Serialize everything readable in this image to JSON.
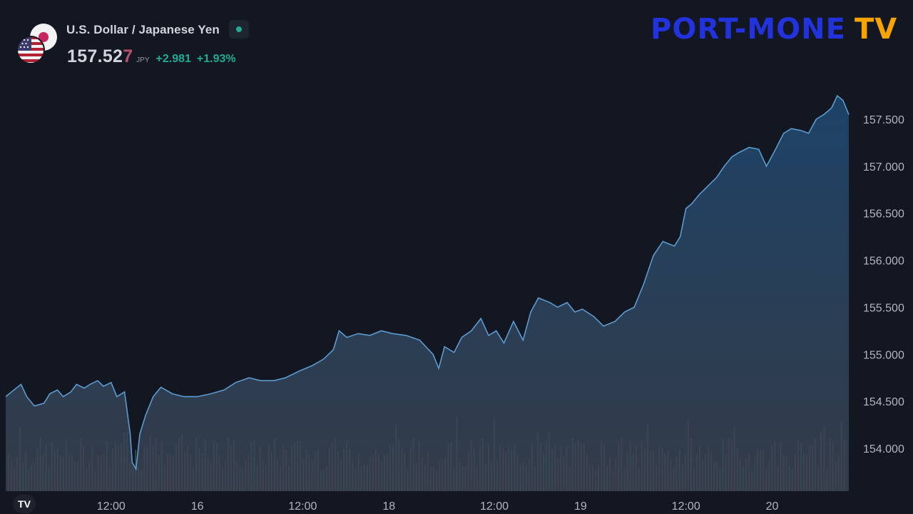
{
  "symbol": {
    "title": "U.S. Dollar / Japanese Yen",
    "price_main": "157.52",
    "price_last_digit": "7",
    "currency": "JPY",
    "change": "+2.981",
    "change_pct": "+1.93%"
  },
  "brand": {
    "part1": "PORT-MONE",
    "part2": "TV"
  },
  "logo_text": "TV",
  "colors": {
    "background": "#131722",
    "line": "#5b9bd1",
    "area_top": "#1f4a73",
    "area_bottom": "#3d4654",
    "volume_up": "#5f7e7a",
    "volume_down": "#8a5a6a",
    "accent_up": "#22ab94",
    "brand_blue": "#2233dd",
    "brand_orange": "#f7a400"
  },
  "chart_data": {
    "type": "area",
    "y_ticks": [
      "157.500",
      "157.000",
      "156.500",
      "156.000",
      "155.500",
      "155.000",
      "154.500",
      "154.000"
    ],
    "y_tick_values": [
      157.5,
      157.0,
      156.5,
      156.0,
      155.5,
      155.0,
      154.5,
      154.0
    ],
    "ylim": [
      153.5,
      157.95
    ],
    "x_ticks": [
      "12:00",
      "16",
      "12:00",
      "18",
      "12:00",
      "19",
      "12:00",
      "20"
    ],
    "x_tick_positions": [
      0.55,
      1.0,
      1.55,
      2.0,
      2.55,
      3.0,
      3.55,
      4.0
    ],
    "xlim": [
      0.0,
      4.4
    ],
    "series": [
      {
        "x": [
          0.0,
          0.03,
          0.08,
          0.11,
          0.15,
          0.2,
          0.23,
          0.27,
          0.3,
          0.34,
          0.37,
          0.41,
          0.44,
          0.48,
          0.51,
          0.55,
          0.58,
          0.62,
          0.65,
          0.66,
          0.68,
          0.7,
          0.73,
          0.77,
          0.81,
          0.87,
          0.93,
          1.0,
          1.07,
          1.14,
          1.2,
          1.27,
          1.33,
          1.4,
          1.46,
          1.53,
          1.6,
          1.66,
          1.71,
          1.74,
          1.78,
          1.84,
          1.9,
          1.96,
          2.02,
          2.09,
          2.16,
          2.23,
          2.26,
          2.29,
          2.34,
          2.38,
          2.43,
          2.48,
          2.52,
          2.56,
          2.6,
          2.65,
          2.7,
          2.74,
          2.78,
          2.84,
          2.88,
          2.93,
          2.97,
          3.01,
          3.07,
          3.12,
          3.18,
          3.23,
          3.28,
          3.33,
          3.38,
          3.43,
          3.49,
          3.52,
          3.55,
          3.58,
          3.62,
          3.67,
          3.71,
          3.75,
          3.79,
          3.83,
          3.88,
          3.93,
          3.97,
          4.01,
          4.06,
          4.1,
          4.15,
          4.19,
          4.23,
          4.27,
          4.31,
          4.34,
          4.37,
          4.4
        ],
        "y": [
          154.55,
          154.6,
          154.68,
          154.55,
          154.45,
          154.48,
          154.58,
          154.62,
          154.55,
          154.6,
          154.68,
          154.64,
          154.68,
          154.72,
          154.66,
          154.7,
          154.55,
          154.6,
          154.15,
          153.85,
          153.78,
          154.15,
          154.35,
          154.55,
          154.65,
          154.58,
          154.55,
          154.55,
          154.58,
          154.62,
          154.7,
          154.75,
          154.72,
          154.72,
          154.75,
          154.82,
          154.88,
          154.95,
          155.05,
          155.25,
          155.18,
          155.22,
          155.2,
          155.25,
          155.22,
          155.2,
          155.15,
          155.0,
          154.85,
          155.08,
          155.02,
          155.18,
          155.25,
          155.38,
          155.2,
          155.25,
          155.12,
          155.35,
          155.15,
          155.45,
          155.6,
          155.55,
          155.5,
          155.55,
          155.45,
          155.48,
          155.4,
          155.3,
          155.35,
          155.45,
          155.5,
          155.75,
          156.05,
          156.2,
          156.15,
          156.25,
          156.55,
          156.6,
          156.7,
          156.8,
          156.88,
          157.0,
          157.1,
          157.15,
          157.2,
          157.18,
          157.0,
          157.15,
          157.35,
          157.4,
          157.38,
          157.35,
          157.5,
          157.55,
          157.62,
          157.75,
          157.7,
          157.55
        ]
      }
    ],
    "volume": {
      "note": "relative volume bars at chart bottom",
      "ylim": [
        0,
        1.0
      ]
    }
  }
}
